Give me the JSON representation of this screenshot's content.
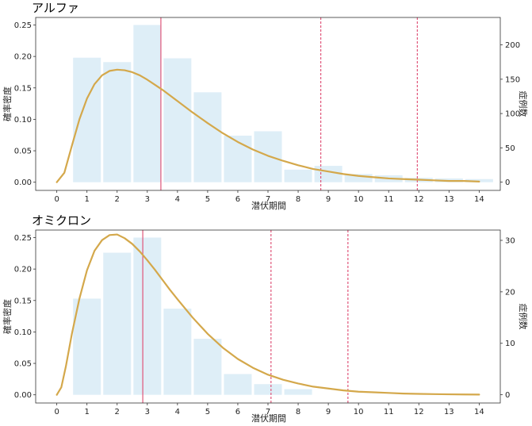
{
  "chart_data": [
    {
      "type": "bar",
      "title": "アルファ",
      "xlabel": "潜伏期間",
      "ylabel": "確率密度",
      "y2label": "症例数",
      "xlim": [
        -0.7,
        14.7
      ],
      "ylim": [
        -0.013,
        0.262
      ],
      "y2lim": [
        -12,
        240
      ],
      "x_ticks": [
        0,
        1,
        2,
        3,
        4,
        5,
        6,
        7,
        8,
        9,
        10,
        11,
        12,
        13,
        14
      ],
      "y_ticks": [
        0.0,
        0.05,
        0.1,
        0.15,
        0.2,
        0.25
      ],
      "y_tick_labels": [
        "0.00",
        "0.05",
        "0.10",
        "0.15",
        "0.20",
        "0.25"
      ],
      "y2_ticks": [
        0,
        50,
        100,
        150,
        200
      ],
      "bars": {
        "x": [
          1,
          2,
          3,
          4,
          5,
          6,
          7,
          8,
          9,
          10,
          11,
          12,
          13,
          14
        ],
        "values": [
          0.198,
          0.191,
          0.25,
          0.197,
          0.143,
          0.074,
          0.081,
          0.02,
          0.026,
          0.013,
          0.011,
          0.007,
          0.006,
          0.005
        ],
        "color": "#deeef7"
      },
      "curve": {
        "x": [
          0,
          0.25,
          0.5,
          0.75,
          1,
          1.25,
          1.5,
          1.75,
          2,
          2.25,
          2.5,
          2.75,
          3,
          3.25,
          3.5,
          3.75,
          4,
          4.5,
          5,
          5.5,
          6,
          6.5,
          7,
          7.5,
          8,
          8.5,
          9,
          9.5,
          10,
          10.5,
          11,
          11.5,
          12,
          12.5,
          13,
          13.5,
          14
        ],
        "y": [
          0.0,
          0.015,
          0.058,
          0.1,
          0.133,
          0.156,
          0.17,
          0.177,
          0.179,
          0.178,
          0.175,
          0.17,
          0.163,
          0.155,
          0.147,
          0.138,
          0.129,
          0.111,
          0.094,
          0.078,
          0.064,
          0.052,
          0.042,
          0.034,
          0.027,
          0.021,
          0.017,
          0.013,
          0.01,
          0.008,
          0.006,
          0.005,
          0.004,
          0.003,
          0.002,
          0.002,
          0.001
        ],
        "color": "#d4a84b"
      },
      "vlines": [
        {
          "x": 3.45,
          "style": "solid",
          "color": "#e0567a"
        },
        {
          "x": 8.75,
          "style": "dashed",
          "color": "#e0567a"
        },
        {
          "x": 11.95,
          "style": "dashed",
          "color": "#e0567a"
        }
      ],
      "grid": false
    },
    {
      "type": "bar",
      "title": "オミクロン",
      "xlabel": "潜伏期間",
      "ylabel": "確率密度",
      "y2label": "症例数",
      "xlim": [
        -0.7,
        14.7
      ],
      "ylim": [
        -0.013,
        0.262
      ],
      "y2lim": [
        -1.6,
        32
      ],
      "x_ticks": [
        0,
        1,
        2,
        3,
        4,
        5,
        6,
        7,
        8,
        9,
        10,
        11,
        12,
        13,
        14
      ],
      "y_ticks": [
        0.0,
        0.05,
        0.1,
        0.15,
        0.2,
        0.25
      ],
      "y_tick_labels": [
        "0.00",
        "0.05",
        "0.10",
        "0.15",
        "0.20",
        "0.25"
      ],
      "y2_ticks": [
        0,
        10,
        20,
        30
      ],
      "bars": {
        "x": [
          1,
          2,
          3,
          4,
          5,
          6,
          7,
          8
        ],
        "values": [
          0.153,
          0.226,
          0.25,
          0.137,
          0.089,
          0.033,
          0.017,
          0.009
        ],
        "color": "#deeef7"
      },
      "curve": {
        "x": [
          0,
          0.15,
          0.3,
          0.5,
          0.75,
          1,
          1.25,
          1.5,
          1.75,
          2,
          2.25,
          2.5,
          2.75,
          3,
          3.25,
          3.5,
          3.75,
          4,
          4.5,
          5,
          5.5,
          6,
          6.5,
          7,
          7.5,
          8,
          8.5,
          9,
          9.5,
          10,
          10.5,
          11,
          11.5,
          12,
          12.5,
          13,
          13.5,
          14
        ],
        "y": [
          0.0,
          0.012,
          0.045,
          0.097,
          0.153,
          0.198,
          0.229,
          0.246,
          0.254,
          0.255,
          0.249,
          0.24,
          0.228,
          0.214,
          0.199,
          0.183,
          0.167,
          0.152,
          0.123,
          0.097,
          0.075,
          0.057,
          0.043,
          0.032,
          0.024,
          0.018,
          0.013,
          0.01,
          0.007,
          0.005,
          0.004,
          0.003,
          0.002,
          0.0015,
          0.0011,
          0.0008,
          0.0006,
          0.0004
        ],
        "color": "#d4a84b"
      },
      "vlines": [
        {
          "x": 2.85,
          "style": "solid",
          "color": "#e0567a"
        },
        {
          "x": 7.1,
          "style": "dashed",
          "color": "#e0567a"
        },
        {
          "x": 9.65,
          "style": "dashed",
          "color": "#e0567a"
        }
      ],
      "grid": false
    }
  ]
}
